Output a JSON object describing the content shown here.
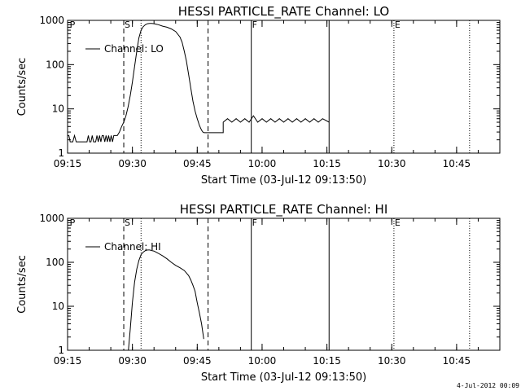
{
  "footer_stamp": "4-Jul-2012 00:09",
  "chart_data": [
    {
      "type": "line",
      "title": "HESSI PARTICLE_RATE Channel: LO",
      "xlabel": "Start Time (03-Jul-12 09:13:50)",
      "ylabel": "Counts/sec",
      "y_scale": "log",
      "ylim": [
        1,
        1000
      ],
      "x_unit": "minutes after 09:15",
      "xlim": [
        0,
        100
      ],
      "x_ticks": [
        {
          "value": 0,
          "label": "09:15"
        },
        {
          "value": 15,
          "label": "09:30"
        },
        {
          "value": 30,
          "label": "09:45"
        },
        {
          "value": 45,
          "label": "10:00"
        },
        {
          "value": 60,
          "label": "10:15"
        },
        {
          "value": 75,
          "label": "10:30"
        },
        {
          "value": 90,
          "label": "10:45"
        }
      ],
      "y_ticks": [
        {
          "value": 1,
          "label": "1"
        },
        {
          "value": 10,
          "label": "10"
        },
        {
          "value": 100,
          "label": "100"
        },
        {
          "value": 1000,
          "label": "1000"
        }
      ],
      "legend": {
        "label": "Channel: LO",
        "position": "top-left"
      },
      "markers": [
        {
          "x": 0.3,
          "label": "P",
          "style": "none"
        },
        {
          "x": 13,
          "label": "S",
          "style": "dashed"
        },
        {
          "x": 17,
          "label": "",
          "style": "dotted"
        },
        {
          "x": 32.5,
          "label": "",
          "style": "dashed"
        },
        {
          "x": 42.5,
          "label": "F",
          "style": "solid"
        },
        {
          "x": 60.5,
          "label": "",
          "style": "solid"
        },
        {
          "x": 75.5,
          "label": "E",
          "style": "dotted"
        },
        {
          "x": 93,
          "label": "",
          "style": "dotted"
        }
      ],
      "series": [
        {
          "name": "Channel: LO",
          "x": [
            0,
            0.3,
            0.6,
            0.9,
            1.2,
            1.6,
            2,
            3,
            4.5,
            4.8,
            5.1,
            5.4,
            5.7,
            6,
            6.3,
            6.5,
            6.8,
            7.1,
            7.4,
            7.7,
            8,
            8.3,
            8.6,
            8.9,
            9.2,
            9.5,
            9.8,
            10.1,
            10.4,
            10.7,
            11.5,
            12,
            12.5,
            13,
            13.5,
            14,
            14.5,
            15,
            15.5,
            16,
            16.5,
            17,
            17.5,
            18,
            18.5,
            19,
            19.5,
            20,
            20.5,
            21,
            22,
            23,
            24,
            25,
            26,
            26.5,
            27,
            27.5,
            28,
            28.5,
            29,
            29.5,
            30,
            30.5,
            31,
            31.3,
            31.6,
            31.9,
            32.2,
            32.5,
            33,
            33.5,
            34,
            35,
            35.5,
            36,
            36,
            37,
            38,
            39,
            40,
            41,
            42,
            43,
            44,
            45,
            46,
            47,
            48,
            49,
            50,
            51,
            52,
            53,
            54,
            55,
            56,
            57,
            58,
            59,
            60.5
          ],
          "values": [
            2.5,
            2.5,
            1.8,
            1.8,
            1.8,
            2.5,
            1.8,
            1.8,
            1.8,
            2.5,
            1.8,
            1.8,
            2.5,
            1.8,
            1.8,
            1.8,
            2.5,
            1.8,
            2.5,
            1.8,
            2.5,
            2.5,
            1.8,
            2.5,
            1.8,
            2.5,
            1.8,
            2.5,
            1.8,
            2.5,
            2.5,
            3,
            4,
            5,
            7,
            11,
            20,
            40,
            90,
            200,
            400,
            600,
            720,
            800,
            840,
            850,
            850,
            840,
            820,
            800,
            740,
            700,
            640,
            560,
            420,
            320,
            200,
            120,
            60,
            30,
            15,
            9,
            6,
            4.2,
            3.3,
            3.0,
            2.9,
            2.9,
            2.9,
            2.9,
            2.9,
            2.9,
            2.9,
            2.9,
            2.9,
            2.9,
            5,
            6,
            5,
            6,
            5,
            6,
            5,
            7,
            5,
            6,
            5,
            6,
            5,
            6,
            5,
            6,
            5,
            6,
            5,
            6,
            5,
            6,
            5,
            6,
            5
          ]
        }
      ]
    },
    {
      "type": "line",
      "title": "HESSI PARTICLE_RATE Channel: HI",
      "xlabel": "Start Time (03-Jul-12 09:13:50)",
      "ylabel": "Counts/sec",
      "y_scale": "log",
      "ylim": [
        1,
        1000
      ],
      "x_unit": "minutes after 09:15",
      "xlim": [
        0,
        100
      ],
      "x_ticks": [
        {
          "value": 0,
          "label": "09:15"
        },
        {
          "value": 15,
          "label": "09:30"
        },
        {
          "value": 30,
          "label": "09:45"
        },
        {
          "value": 45,
          "label": "10:00"
        },
        {
          "value": 60,
          "label": "10:15"
        },
        {
          "value": 75,
          "label": "10:30"
        },
        {
          "value": 90,
          "label": "10:45"
        }
      ],
      "y_ticks": [
        {
          "value": 1,
          "label": "1"
        },
        {
          "value": 10,
          "label": "10"
        },
        {
          "value": 100,
          "label": "100"
        },
        {
          "value": 1000,
          "label": "1000"
        }
      ],
      "legend": {
        "label": "Channel: HI",
        "position": "top-left"
      },
      "markers": [
        {
          "x": 0.3,
          "label": "P",
          "style": "none"
        },
        {
          "x": 13,
          "label": "S",
          "style": "dashed"
        },
        {
          "x": 17,
          "label": "",
          "style": "dotted"
        },
        {
          "x": 32.5,
          "label": "",
          "style": "dashed"
        },
        {
          "x": 42.5,
          "label": "F",
          "style": "solid"
        },
        {
          "x": 60.5,
          "label": "",
          "style": "solid"
        },
        {
          "x": 75.5,
          "label": "E",
          "style": "dotted"
        },
        {
          "x": 93,
          "label": "",
          "style": "dotted"
        }
      ],
      "series": [
        {
          "name": "Channel: HI",
          "x": [
            13.8,
            14.5,
            15,
            15.5,
            16,
            16.5,
            17,
            17.5,
            18,
            18.5,
            19,
            19.5,
            20,
            21,
            22,
            23,
            24,
            25,
            26,
            27,
            28,
            28.5,
            29,
            29.5,
            30,
            30.5,
            31,
            31.5
          ],
          "values": [
            0.5,
            3,
            12,
            35,
            70,
            110,
            150,
            170,
            185,
            190,
            190,
            185,
            180,
            160,
            140,
            120,
            100,
            85,
            75,
            65,
            50,
            40,
            30,
            22,
            12,
            7,
            4,
            1.8
          ]
        }
      ]
    }
  ]
}
